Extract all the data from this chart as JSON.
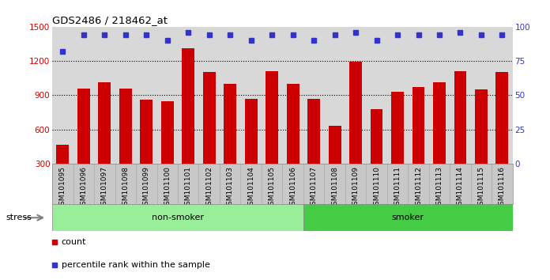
{
  "title": "GDS2486 / 218462_at",
  "categories": [
    "GSM101095",
    "GSM101096",
    "GSM101097",
    "GSM101098",
    "GSM101099",
    "GSM101100",
    "GSM101101",
    "GSM101102",
    "GSM101103",
    "GSM101104",
    "GSM101105",
    "GSM101106",
    "GSM101107",
    "GSM101108",
    "GSM101109",
    "GSM101110",
    "GSM101111",
    "GSM101112",
    "GSM101113",
    "GSM101114",
    "GSM101115",
    "GSM101116"
  ],
  "bar_values": [
    470,
    960,
    1010,
    960,
    860,
    850,
    1310,
    1100,
    1000,
    870,
    1110,
    1000,
    870,
    630,
    1190,
    780,
    930,
    970,
    1010,
    1110,
    950,
    1100
  ],
  "percentile_values": [
    82,
    94,
    94,
    94,
    94,
    90,
    96,
    94,
    94,
    90,
    94,
    94,
    90,
    94,
    96,
    90,
    94,
    94,
    94,
    96,
    94,
    94
  ],
  "bar_color": "#cc0000",
  "dot_color": "#3333cc",
  "ylim_left": [
    300,
    1500
  ],
  "ylim_right": [
    0,
    100
  ],
  "yticks_left": [
    300,
    600,
    900,
    1200,
    1500
  ],
  "yticks_right": [
    0,
    25,
    50,
    75,
    100
  ],
  "grid_values": [
    600,
    900,
    1200
  ],
  "non_smoker_count": 12,
  "smoker_count": 10,
  "group_label_nonsmoker": "non-smoker",
  "group_label_smoker": "smoker",
  "stress_label": "stress",
  "legend_count_label": "count",
  "legend_percentile_label": "percentile rank within the sample",
  "plot_bg_color": "#d8d8d8",
  "xtick_bg_color": "#c8c8c8",
  "nonsmoker_color": "#99ee99",
  "smoker_color": "#44cc44",
  "bar_width": 0.6,
  "fig_bg": "#ffffff"
}
